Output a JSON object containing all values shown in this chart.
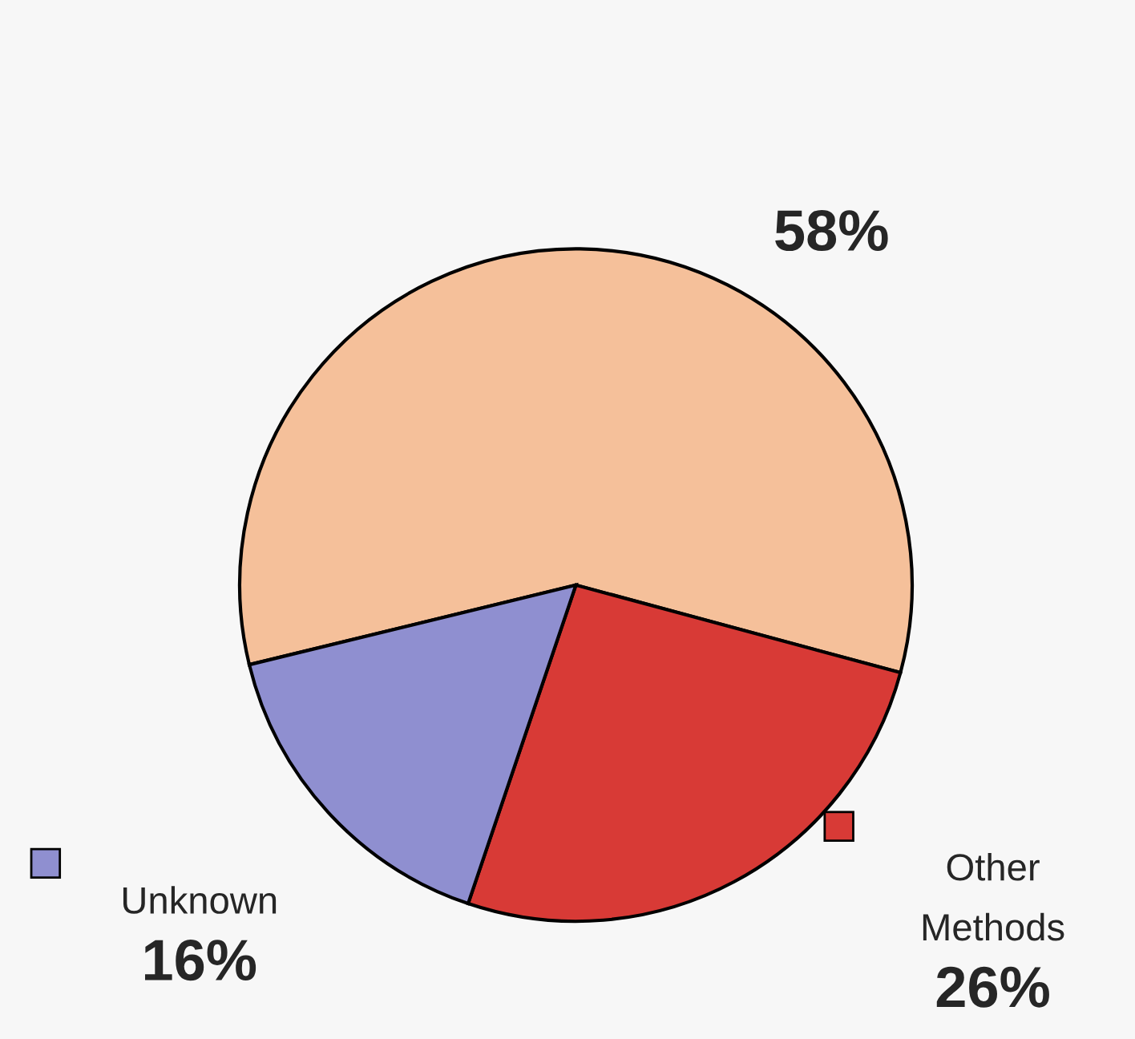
{
  "chart_data": {
    "type": "pie",
    "categories": [
      null,
      "Other Methods",
      "Unknown"
    ],
    "values": [
      58,
      26,
      16
    ],
    "colors": [
      "#f5c09a",
      "#d83a36",
      "#8f8fd0"
    ],
    "value_labels": [
      "58%",
      "26%",
      "16%"
    ]
  }
}
